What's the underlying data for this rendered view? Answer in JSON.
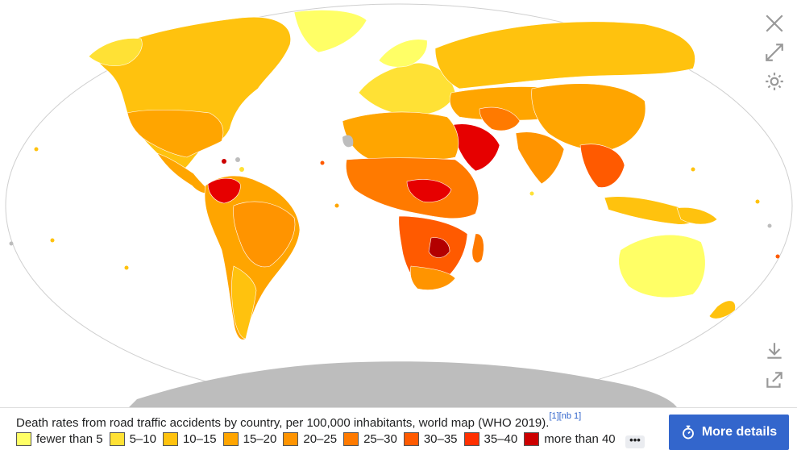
{
  "caption": {
    "text": "Death rates from road traffic accidents by country, per 100,000 inhabitants, world map (WHO 2019).",
    "refs": "[1][nb 1]"
  },
  "legend": [
    {
      "label": "fewer than 5",
      "color": "#ffff66"
    },
    {
      "label": "5–10",
      "color": "#ffe135"
    },
    {
      "label": "10–15",
      "color": "#ffc20e"
    },
    {
      "label": "15–20",
      "color": "#ffa500"
    },
    {
      "label": "20–25",
      "color": "#ff9400"
    },
    {
      "label": "25–30",
      "color": "#ff7a00"
    },
    {
      "label": "30–35",
      "color": "#ff5a00"
    },
    {
      "label": "35–40",
      "color": "#ff3000"
    },
    {
      "label": "more than 40",
      "color": "#cc0000"
    }
  ],
  "more_dots": "•••",
  "more_details_label": "More details",
  "icons": {
    "close": "close-icon",
    "fullscreen": "expand-icon",
    "settings": "gear-icon",
    "download": "download-icon",
    "share": "share-icon"
  },
  "colors": {
    "ocean": "#ffffff",
    "no_data": "#bdbdbd",
    "button": "#3366cc"
  }
}
